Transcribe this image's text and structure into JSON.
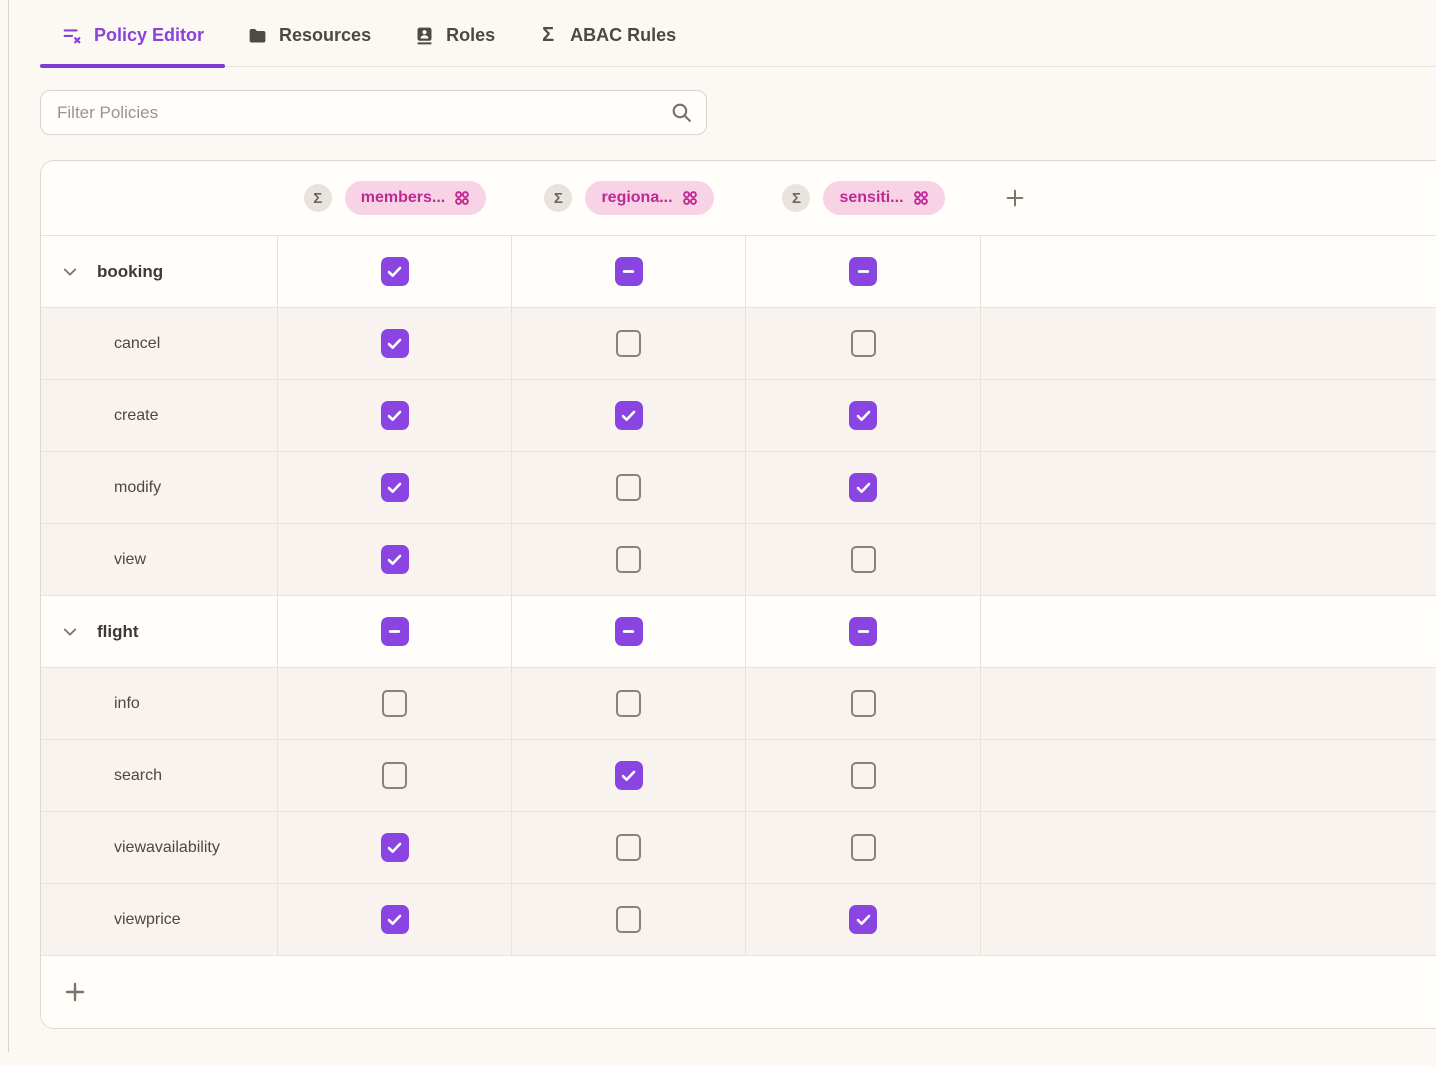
{
  "tabs": [
    {
      "label": "Policy Editor",
      "icon": "policy-list-icon",
      "active": true
    },
    {
      "label": "Resources",
      "icon": "folder-icon",
      "active": false
    },
    {
      "label": "Roles",
      "icon": "id-card-icon",
      "active": false
    },
    {
      "label": "ABAC Rules",
      "icon": "sigma-icon",
      "active": false
    }
  ],
  "filter": {
    "placeholder": "Filter Policies"
  },
  "matrix": {
    "columns": [
      {
        "label": "members...",
        "sigma": "Σ",
        "icon": "attribute-group-icon"
      },
      {
        "label": "regiona...",
        "sigma": "Σ",
        "icon": "attribute-group-icon"
      },
      {
        "label": "sensiti...",
        "sigma": "Σ",
        "icon": "attribute-group-icon"
      }
    ],
    "rows": [
      {
        "label": "booking",
        "type": "parent",
        "states": [
          "checked",
          "indeterminate",
          "indeterminate"
        ]
      },
      {
        "label": "cancel",
        "type": "child",
        "states": [
          "checked",
          "unchecked",
          "unchecked"
        ]
      },
      {
        "label": "create",
        "type": "child",
        "states": [
          "checked",
          "checked",
          "checked"
        ]
      },
      {
        "label": "modify",
        "type": "child",
        "states": [
          "checked",
          "unchecked",
          "checked"
        ]
      },
      {
        "label": "view",
        "type": "child",
        "states": [
          "checked",
          "unchecked",
          "unchecked"
        ]
      },
      {
        "label": "flight",
        "type": "parent",
        "states": [
          "indeterminate",
          "indeterminate",
          "indeterminate"
        ]
      },
      {
        "label": "info",
        "type": "child",
        "states": [
          "unchecked",
          "unchecked",
          "unchecked"
        ]
      },
      {
        "label": "search",
        "type": "child",
        "states": [
          "unchecked",
          "checked",
          "unchecked"
        ]
      },
      {
        "label": "viewavailability",
        "type": "child",
        "states": [
          "checked",
          "unchecked",
          "unchecked"
        ]
      },
      {
        "label": "viewprice",
        "type": "child",
        "states": [
          "checked",
          "unchecked",
          "checked"
        ]
      }
    ],
    "add_column_icon": "plus-icon",
    "add_row_icon": "plus-icon"
  },
  "colors": {
    "accent_purple": "#8944e2",
    "tab_active_purple": "#8a42d8",
    "pill_background": "#f8d2e5",
    "pill_text": "#c02994",
    "sigma_badge_background": "#e9e3de",
    "unchecked_border": "#8c8178",
    "child_row_background": "#f8f3ee",
    "parent_row_background": "#fffefb",
    "page_background": "#fcf9f5"
  }
}
